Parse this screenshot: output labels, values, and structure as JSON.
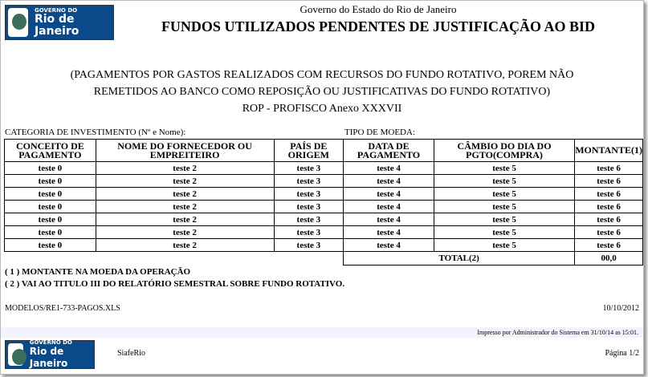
{
  "header": {
    "logo_line1": "GOVERNO DO",
    "logo_line2": "Rio de Janeiro",
    "gov": "Governo do Estado do Rio de Janeiro",
    "title": "FUNDOS UTILIZADOS PENDENTES DE JUSTIFICAÇÃO AO BID"
  },
  "subtitle": {
    "line1": "(PAGAMENTOS POR GASTOS REALIZADOS COM RECURSOS DO FUNDO ROTATIVO, POREM NÃO",
    "line2": "REMETIDOS AO BANCO COMO REPOSIÇÃO OU JUSTIFICATIVAS DO FUNDO ROTATIVO)",
    "line3": "ROP - PROFISCO Anexo XXXVII"
  },
  "labels": {
    "categoria": "CATEGORIA DE INVESTIMENTO (Nº e Nome):",
    "moeda": "TIPO DE MOEDA:"
  },
  "table": {
    "headers": [
      "CONCEITO DE PAGAMENTO",
      "NOME DO FORNECEDOR OU EMPREITEIRO",
      "PAÍS DE ORIGEM",
      "DATA DE PAGAMENTO",
      "CÂMBIO DO DIA DO PGTO(COMPRA)",
      "MONTANTE(1)"
    ],
    "rows": [
      [
        "teste 0",
        "teste 2",
        "teste 3",
        "teste 4",
        "teste 5",
        "teste 6"
      ],
      [
        "teste 0",
        "teste 2",
        "teste 3",
        "teste 4",
        "teste 5",
        "teste 6"
      ],
      [
        "teste 0",
        "teste 2",
        "teste 3",
        "teste 4",
        "teste 5",
        "teste 6"
      ],
      [
        "teste 0",
        "teste 2",
        "teste 3",
        "teste 4",
        "teste 5",
        "teste 6"
      ],
      [
        "teste 0",
        "teste 2",
        "teste 3",
        "teste 4",
        "teste 5",
        "teste 6"
      ],
      [
        "teste 0",
        "teste 2",
        "teste 3",
        "teste 4",
        "teste 5",
        "teste 6"
      ],
      [
        "teste 0",
        "teste 2",
        "teste 3",
        "teste 4",
        "teste 5",
        "teste 6"
      ]
    ],
    "total_label": "TOTAL(2)",
    "total_value": "00,0"
  },
  "notes": [
    "( 1 ) MONTANTE NA MOEDA DA OPERAÇÃO",
    "( 2 ) VAI AO TITULO III DO RELATÓRIO SEMESTRAL SOBRE FUNDO ROTATIVO."
  ],
  "footer": {
    "model": "MODELOS/RE1-733-PAGOS.XLS",
    "date": "10/10/2012",
    "printed": "Impresso por Administrador do Sistema em 31/10/14 as 15:01.",
    "system": "SiafeRio",
    "page": "Página 1/2"
  }
}
